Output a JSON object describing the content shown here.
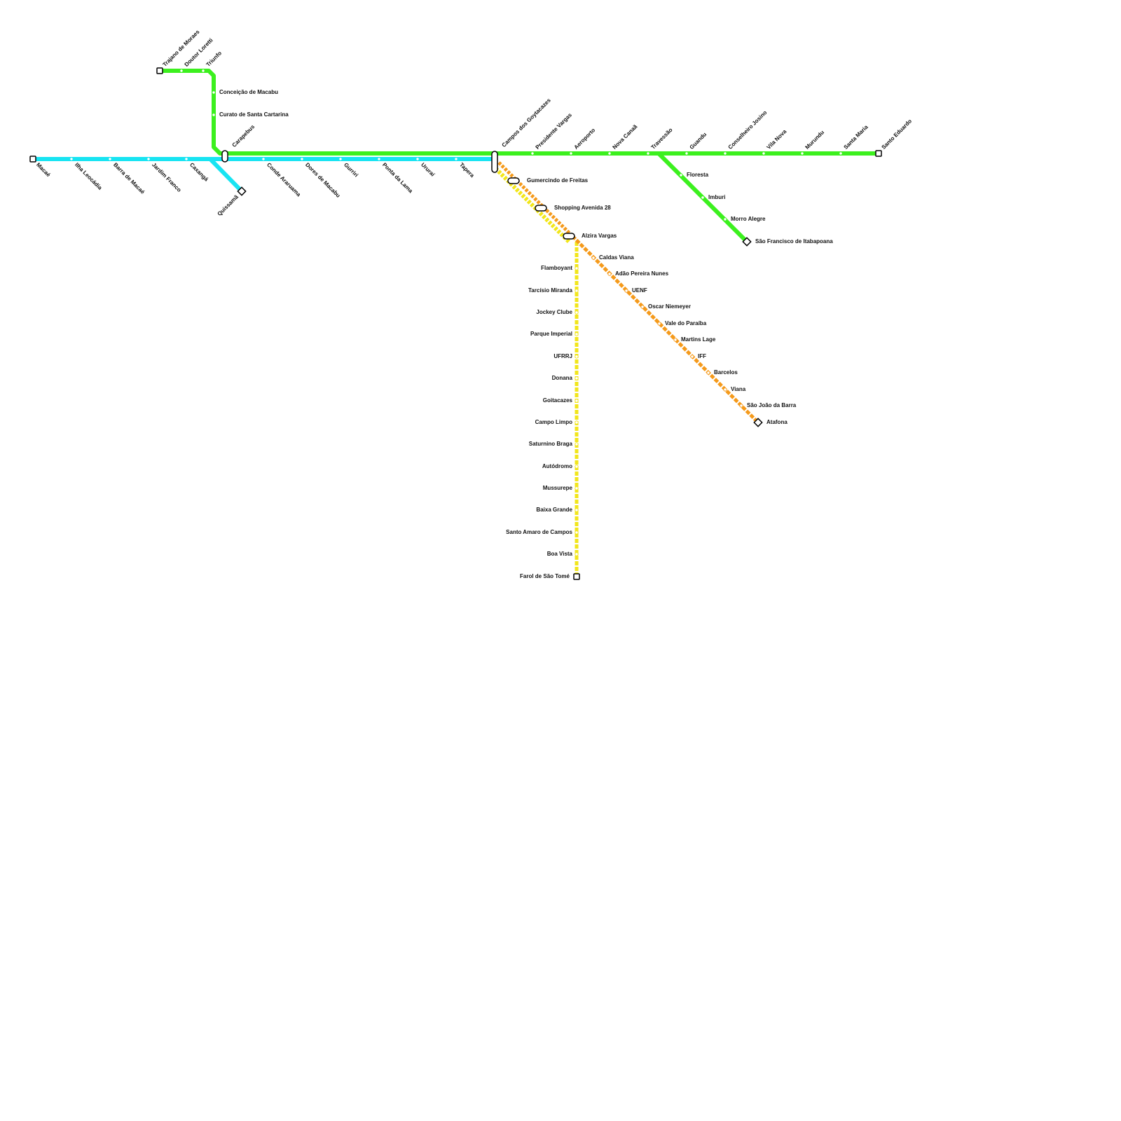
{
  "interchanges": [
    "Carapebus",
    "Campos dos Goytacazes",
    "Gumercindo de Freitas",
    "Shopping Avenida 28",
    "Alzira Vargas"
  ],
  "green_north": [
    "Trajano de Moraes",
    "Doutor Loretti",
    "Triunfo",
    "Conceição de Macabu",
    "Curato de Santa Cartarina"
  ],
  "green_east": [
    "Presidente Vargas",
    "Aeroporto",
    "Nova Canaã",
    "Travessão",
    "Guandu",
    "Conselheiro Josino",
    "Vila Nova",
    "Murundu",
    "Santa Maria",
    "Santo Eduardo"
  ],
  "green_southeast": [
    "Floresta",
    "Imburi",
    "Morro Alegre",
    "São Francisco de Itabapoana"
  ],
  "cyan": [
    "Macaé",
    "Ilha Leocádia",
    "Barra de Macaé",
    "Jardim Franco",
    "Caxangá",
    "Conde Araruama",
    "Dores de Macabu",
    "Gurriri",
    "Ponta da Lama",
    "Ururaí",
    "Tapera"
  ],
  "cyan_branch": [
    "Quissamã"
  ],
  "orange": [
    "Caldas Viana",
    "Adão Pereira Nunes",
    "UENF",
    "Oscar Niemeyer",
    "Vale do Paraíba",
    "Martins Lage",
    "IFF",
    "Barcelos",
    "Viana",
    "São João da Barra",
    "Atafona"
  ],
  "yellow": [
    "Flamboyant",
    "Tarcísio Miranda",
    "Jockey Clube",
    "Parque Imperial",
    "UFRRJ",
    "Donana",
    "Goitacazes",
    "Campo Limpo",
    "Saturnino Braga",
    "Autódromo",
    "Mussurepe",
    "Baixa Grande",
    "Santo Amaro de Campos",
    "Boa Vista",
    "Farol de São Tomé"
  ]
}
